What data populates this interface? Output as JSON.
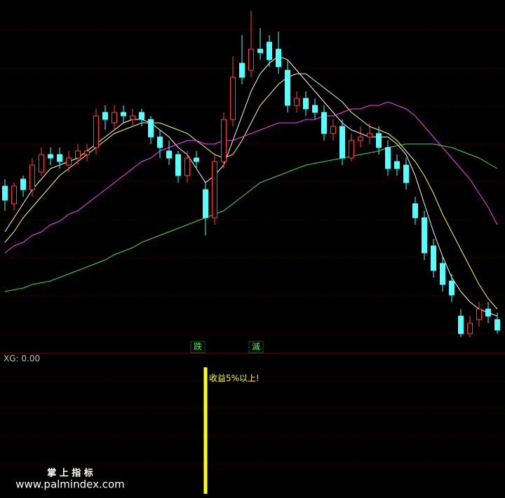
{
  "chart_data": [
    {
      "type": "candlestick",
      "open": [
        47,
        42,
        49,
        46,
        51,
        56,
        56,
        53,
        55,
        56,
        58,
        68,
        65,
        68,
        66,
        68,
        66,
        61,
        57,
        56,
        50,
        55,
        46,
        38,
        54,
        66,
        82,
        80,
        86,
        88,
        86,
        80,
        70,
        72,
        70,
        68,
        62,
        64,
        55,
        60,
        61,
        62,
        58,
        54,
        53,
        42,
        38,
        30,
        25,
        20,
        10,
        5,
        9,
        12,
        9
      ],
      "close": [
        43,
        47,
        46,
        53,
        56,
        55,
        54,
        55,
        57,
        57,
        67,
        66,
        68,
        67,
        67,
        66,
        61,
        58,
        55,
        50,
        55,
        54,
        38,
        54,
        66,
        78,
        78,
        86,
        85,
        83,
        81,
        70,
        72,
        69,
        68,
        62,
        64,
        55,
        60,
        61,
        62,
        58,
        52,
        52,
        48,
        38,
        28,
        23,
        19,
        16,
        5,
        8,
        12,
        10,
        6
      ],
      "high": [
        49,
        48,
        50,
        55,
        58,
        58,
        58,
        57,
        59,
        59,
        69,
        70,
        70,
        70,
        69,
        69,
        67,
        63,
        60,
        57,
        57,
        57,
        48,
        56,
        68,
        84,
        90,
        97,
        92,
        90,
        91,
        83,
        74,
        74,
        72,
        70,
        66,
        66,
        62,
        64,
        65,
        64,
        60,
        56,
        55,
        44,
        40,
        32,
        27,
        22,
        12,
        10,
        14,
        14,
        11
      ],
      "low": [
        40,
        40,
        44,
        44,
        50,
        53,
        52,
        51,
        53,
        54,
        56,
        63,
        63,
        65,
        64,
        64,
        59,
        55,
        53,
        48,
        48,
        52,
        33,
        36,
        52,
        64,
        76,
        78,
        83,
        81,
        79,
        68,
        68,
        67,
        66,
        60,
        60,
        53,
        54,
        58,
        59,
        56,
        50,
        50,
        46,
        36,
        26,
        21,
        17,
        14,
        4,
        4,
        7,
        8,
        5
      ],
      "up_color": "#ff4040",
      "down_color": "#54ffff",
      "ylim": [
        0,
        100
      ],
      "lines": [
        {
          "color": "#ffffff",
          "values": [
            34,
            38,
            42,
            46,
            49,
            52,
            53,
            54,
            55,
            57,
            59,
            61,
            63,
            65,
            66,
            66,
            65,
            63,
            61,
            58,
            56,
            52,
            48,
            50,
            53,
            60,
            67,
            74,
            79,
            82,
            84,
            83,
            80,
            77,
            74,
            71,
            68,
            65,
            63,
            62,
            61,
            61,
            61,
            59,
            56,
            50,
            42,
            34,
            27,
            21,
            17,
            14,
            12,
            11,
            10
          ]
        },
        {
          "color": "#ffff66",
          "values": [
            31,
            34,
            38,
            41,
            44,
            47,
            50,
            52,
            54,
            56,
            58,
            60,
            62,
            63,
            64,
            65,
            65,
            65,
            64,
            63,
            62,
            60,
            58,
            56,
            55,
            56,
            60,
            65,
            70,
            73,
            76,
            78,
            79,
            79,
            77,
            75,
            73,
            71,
            68,
            66,
            64,
            63,
            62,
            60,
            57,
            54,
            50,
            45,
            39,
            34,
            29,
            24,
            19,
            15,
            12
          ]
        },
        {
          "color": "#ff40ff",
          "values": [
            28,
            30,
            31,
            33,
            34,
            36,
            37,
            39,
            40,
            42,
            44,
            46,
            48,
            50,
            52,
            54,
            55,
            57,
            58,
            59,
            60,
            60,
            59,
            59,
            60,
            60,
            61,
            62,
            63,
            64,
            65,
            65,
            65,
            66,
            66,
            67,
            67,
            68,
            69,
            69,
            70,
            70,
            71,
            70,
            69,
            67,
            64,
            61,
            58,
            55,
            52,
            49,
            45,
            41,
            36
          ]
        },
        {
          "color": "#40e040",
          "values": [
            17,
            17.5,
            18,
            19,
            19.5,
            20,
            21,
            22,
            23,
            24,
            25,
            26,
            27.5,
            28.5,
            29.5,
            31,
            32,
            33,
            34,
            35,
            36,
            37,
            38,
            39,
            40,
            42,
            44,
            46,
            48,
            49,
            50,
            51,
            52,
            53,
            53.5,
            54,
            54.5,
            55,
            55.5,
            56,
            56.5,
            57,
            58,
            58.5,
            59,
            59,
            59,
            59,
            58.5,
            58,
            57,
            56,
            55,
            53.5,
            52
          ]
        }
      ],
      "annotations": [
        "跌",
        "減"
      ]
    },
    {
      "type": "bar",
      "label": "XG: 0.00",
      "values": [
        0,
        0,
        0,
        0,
        0,
        0,
        0,
        0,
        0,
        0,
        0,
        0,
        0,
        0,
        0,
        0,
        0,
        0,
        0,
        0,
        0,
        0,
        1,
        0,
        0,
        0,
        0,
        0,
        0,
        0,
        0,
        0,
        0,
        0,
        0,
        0,
        0,
        0,
        0,
        0,
        0,
        0,
        0,
        0,
        0,
        0,
        0,
        0,
        0,
        0,
        0,
        0,
        0,
        0,
        0
      ],
      "color": "#ffff00",
      "ylim": [
        0,
        1
      ],
      "annotation": "收益5%以上!",
      "watermark_title": "掌 上 指 标",
      "watermark_url": "www.palmindex.com"
    }
  ]
}
